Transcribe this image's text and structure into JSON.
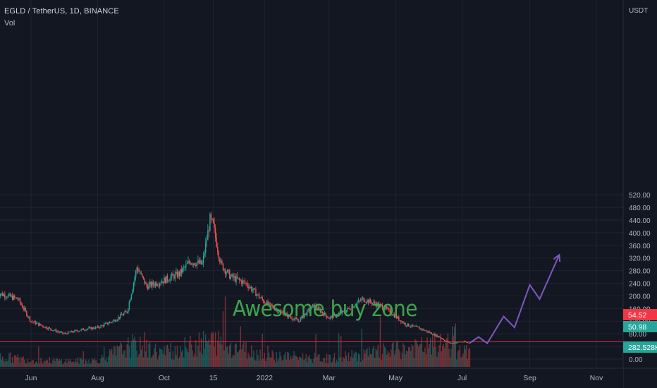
{
  "legend": {
    "symbol_line": "EGLD / TetherUS, 1D, BINANCE",
    "volume_label": "Vol"
  },
  "annotation": {
    "text": "Awesome buy zone",
    "color": "#3fa34d"
  },
  "price_axis": {
    "currency": "USDT",
    "ticks": [
      "520.00",
      "480.00",
      "440.00",
      "400.00",
      "360.00",
      "320.00",
      "280.00",
      "240.00",
      "200.00",
      "160.00",
      "120.00",
      "80.00",
      "40.00",
      "0.00"
    ],
    "tick_values": [
      520,
      480,
      440,
      400,
      360,
      320,
      280,
      240,
      200,
      160,
      120,
      80,
      40,
      0
    ],
    "badges": [
      {
        "text": "54.52",
        "value": 54.52,
        "color": "#f23645"
      },
      {
        "text": "50.98",
        "value": 50.98,
        "color": "#26a69a"
      },
      {
        "text": "282.528K",
        "value": 21,
        "color": "#26a69a"
      }
    ]
  },
  "time_axis": {
    "labels": [
      "Jun",
      "Aug",
      "Oct",
      "15",
      "2022",
      "Mar",
      "May",
      "Jul",
      "Sep",
      "Nov"
    ],
    "dates": [
      "2021-06-01",
      "2021-08-01",
      "2021-10-01",
      "2021-11-15",
      "2022-01-01",
      "2022-03-01",
      "2022-05-01",
      "2022-07-01",
      "2022-09-01",
      "2022-11-01"
    ]
  },
  "colors": {
    "background": "#131722",
    "grid": "#1f2430",
    "up": "#26a69a",
    "down": "#ef5350",
    "projection": "#7e57c2",
    "price_line": "#f23645",
    "axis_text": "#b2b5be"
  },
  "chart_data": {
    "type": "candlestick",
    "title": "EGLD / TetherUS, 1D, BINANCE",
    "ylabel": "USDT",
    "ylim": [
      0,
      540
    ],
    "grid": true,
    "series": [
      {
        "name": "EGLD / TetherUS",
        "x": [
          "2021-05-01",
          "2021-05-20",
          "2021-06-01",
          "2021-06-15",
          "2021-07-01",
          "2021-07-20",
          "2021-08-01",
          "2021-08-15",
          "2021-08-28",
          "2021-09-06",
          "2021-09-15",
          "2021-10-01",
          "2021-10-15",
          "2021-10-25",
          "2021-11-05",
          "2021-11-12",
          "2021-11-15",
          "2021-11-22",
          "2021-12-01",
          "2021-12-15",
          "2022-01-01",
          "2022-01-15",
          "2022-02-01",
          "2022-02-15",
          "2022-03-01",
          "2022-03-15",
          "2022-04-01",
          "2022-04-20",
          "2022-05-10",
          "2022-05-25",
          "2022-06-10",
          "2022-06-20",
          "2022-07-01",
          "2022-07-08"
        ],
        "close": [
          210,
          190,
          120,
          100,
          80,
          95,
          100,
          120,
          150,
          290,
          230,
          250,
          270,
          310,
          300,
          440,
          420,
          300,
          260,
          240,
          180,
          150,
          120,
          170,
          130,
          150,
          190,
          165,
          110,
          95,
          70,
          50,
          55,
          51
        ]
      },
      {
        "name": "Vol",
        "x": [
          "2021-05-01",
          "2021-06-01",
          "2021-07-01",
          "2021-08-01",
          "2021-09-01",
          "2021-10-01",
          "2021-11-15",
          "2022-01-01",
          "2022-03-01",
          "2022-05-01",
          "2022-06-20",
          "2022-07-08"
        ],
        "values": [
          45,
          30,
          25,
          28,
          90,
          60,
          110,
          50,
          35,
          70,
          95,
          282.528
        ]
      },
      {
        "name": "projection",
        "x": [
          "2022-07-08",
          "2022-07-16",
          "2022-07-24",
          "2022-08-08",
          "2022-08-18",
          "2022-09-01",
          "2022-09-10",
          "2022-09-28"
        ],
        "values": [
          51,
          70,
          50,
          135,
          100,
          235,
          190,
          330
        ]
      }
    ]
  }
}
